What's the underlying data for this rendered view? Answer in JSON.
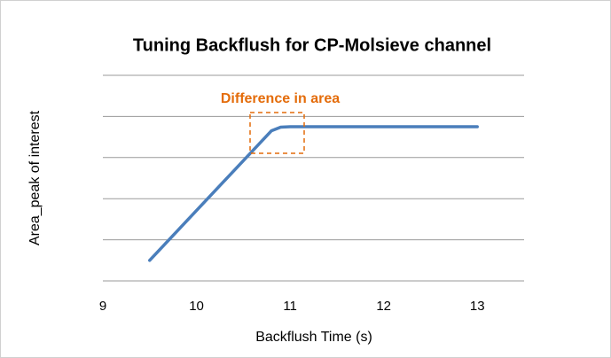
{
  "chart_data": {
    "type": "line",
    "title": "Tuning Backflush for CP-Molsieve channel",
    "xlabel": "Backflush Time (s)",
    "ylabel": "Area_peak of interest",
    "annotation": "Difference in area",
    "x": [
      9.5,
      10.8,
      10.9,
      11,
      12,
      13
    ],
    "values": [
      0.5,
      3.65,
      3.74,
      3.75,
      3.75,
      3.75
    ],
    "color": "#4a7ebb",
    "xlim": [
      9,
      13.5
    ],
    "xticks": [
      9,
      10,
      11,
      12,
      13
    ],
    "ylim": [
      0,
      5
    ],
    "yticks": [
      0,
      1,
      2,
      3,
      4,
      5
    ],
    "grid": true
  }
}
